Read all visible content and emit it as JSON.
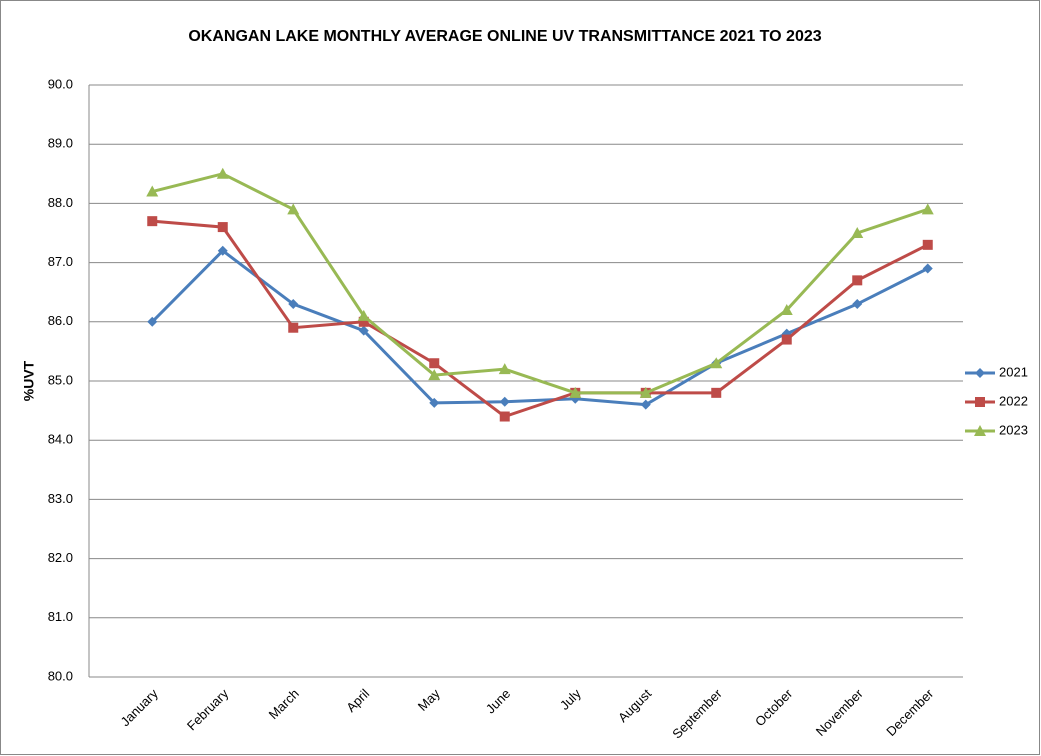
{
  "chart_data": {
    "type": "line",
    "title": "OKANGAN LAKE MONTHLY AVERAGE ONLINE UV TRANSMITTANCE 2021 TO 2023",
    "y_label": "%UVT",
    "categories": [
      "January",
      "February",
      "March",
      "April",
      "May",
      "June",
      "July",
      "August",
      "September",
      "October",
      "November",
      "December"
    ],
    "series": [
      {
        "name": "2021",
        "color": "#4a7ebb",
        "marker": "diamond",
        "values": [
          86.0,
          87.2,
          86.3,
          85.85,
          84.63,
          84.65,
          84.7,
          84.6,
          85.3,
          85.8,
          86.3,
          86.9
        ]
      },
      {
        "name": "2022",
        "color": "#be4b48",
        "marker": "square",
        "values": [
          87.7,
          87.6,
          85.9,
          86.0,
          85.3,
          84.4,
          84.8,
          84.8,
          84.8,
          85.7,
          86.7,
          87.3
        ]
      },
      {
        "name": "2023",
        "color": "#98b954",
        "marker": "triangle",
        "values": [
          88.2,
          88.5,
          87.9,
          86.1,
          85.1,
          85.2,
          84.8,
          84.8,
          85.3,
          86.2,
          87.5,
          87.9
        ]
      }
    ],
    "ylim": [
      80,
      90
    ],
    "yticks": [
      {
        "value": 80,
        "label": "80.0"
      },
      {
        "value": 81,
        "label": "81.0"
      },
      {
        "value": 82,
        "label": "82.0"
      },
      {
        "value": 83,
        "label": "83.0"
      },
      {
        "value": 84,
        "label": "84.0"
      },
      {
        "value": 85,
        "label": "85.0"
      },
      {
        "value": 86,
        "label": "86.0"
      },
      {
        "value": 87,
        "label": "87.0"
      },
      {
        "value": 88,
        "label": "88.0"
      },
      {
        "value": 89,
        "label": "89.0"
      },
      {
        "value": 90,
        "label": "90.0"
      }
    ],
    "grid": true,
    "legend": "right"
  }
}
